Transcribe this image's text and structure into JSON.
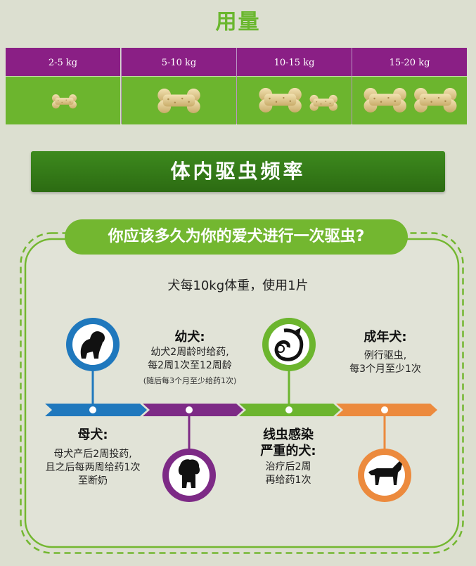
{
  "dosage": {
    "title": "用量",
    "columns": [
      {
        "label": "2-5 kg",
        "bones": 0.5
      },
      {
        "label": "5-10 kg",
        "bones": 1
      },
      {
        "label": "10-15 kg",
        "bones": 1.5
      },
      {
        "label": "15-20 kg",
        "bones": 2
      }
    ]
  },
  "deworming": {
    "banner_title": "体内驱虫频率",
    "question": "你应该多久为你的爱犬进行一次驱虫?",
    "rule": "犬每10kg体重，使用1片",
    "stages": {
      "puppy": {
        "title": "幼犬:",
        "line1": "幼犬2周龄时给药,",
        "line2": "每2周1次至12周龄",
        "note": "(随后每3个月至少给药1次)"
      },
      "adult": {
        "title": "成年犬:",
        "line1": "例行驱虫,",
        "line2": "每3个月至少1次"
      },
      "mother": {
        "title": "母犬:",
        "line1": "母犬产后2周投药,",
        "line2": "且之后每两周给药1次",
        "line3": "至断奶"
      },
      "infected": {
        "title1": "线虫感染",
        "title2": "严重的犬:",
        "line1": "治疗后2周",
        "line2": "再给药1次"
      }
    }
  },
  "colors": {
    "purple": "#8a1f85",
    "green": "#6cb52e",
    "blue": "#1f78bd",
    "orange": "#ec8a3d",
    "dark_green": "#2c6b12"
  }
}
